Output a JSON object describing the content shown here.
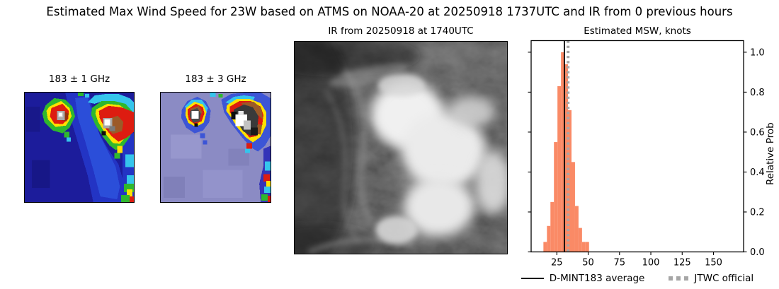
{
  "figure": {
    "title": "Estimated Max Wind Speed for 23W based on ATMS on NOAA-20 at 20250918 1737UTC and IR from 0 previous hours"
  },
  "panels": {
    "mw1": {
      "title": "183 ± 1 GHz"
    },
    "mw2": {
      "title": "183 ± 3 GHz"
    },
    "ir": {
      "title": "IR from 20250918 at 1740UTC"
    }
  },
  "legend": {
    "dmint_label": "D-MINT183 average",
    "jtwc_label": "JTWC official"
  },
  "chart_data": {
    "type": "bar",
    "subtype": "histogram",
    "title": "Estimated MSW, knots",
    "xlabel": "",
    "ylabel": "Relative Prob",
    "bin_start": 14.3,
    "bin_width": 2.8,
    "values": [
      0.05,
      0.13,
      0.25,
      0.55,
      0.83,
      1.0,
      0.94,
      0.71,
      0.45,
      0.23,
      0.12,
      0.05,
      0.05
    ],
    "xticks": [
      25,
      50,
      75,
      100,
      125,
      150
    ],
    "ytick_labels": [
      "0.0",
      "0.2",
      "0.4",
      "0.6",
      "0.8",
      "1.0"
    ],
    "xlim": [
      4.5,
      174
    ],
    "ylim": [
      0,
      1.058
    ],
    "grid": false,
    "legend_position": "below",
    "dmint183_average_kt": 31,
    "jtwc_official_kt": 34,
    "bar_color": "#fa8a66",
    "average_line_color": "#000000",
    "jtwc_line_color": "#a6a6a6"
  },
  "colors": {
    "jtwc_gray": "#a6a6a6",
    "mw1_bg": "#1c1c9b",
    "mw1_blue_mid": "#2334c4",
    "mw1_blue_light": "#2d54dd",
    "mw2_bg": "#8b8bc4",
    "mw2_bg_light": "#9a9ad0",
    "mw2_blue": "#3c55d6",
    "cyan": "#35c5ec",
    "green": "#2eb82e",
    "yellow": "#ffe100",
    "red": "#dd1c10",
    "dark_red": "#93310f",
    "brown": "#9c5a28",
    "gray": "#a9a9a9",
    "light_gray": "#d8d8d8",
    "dark_gray": "#3a3a3a",
    "white": "#ffffff",
    "black_px": "#0d0d0d",
    "ir_bg": "#2d2d2d"
  }
}
